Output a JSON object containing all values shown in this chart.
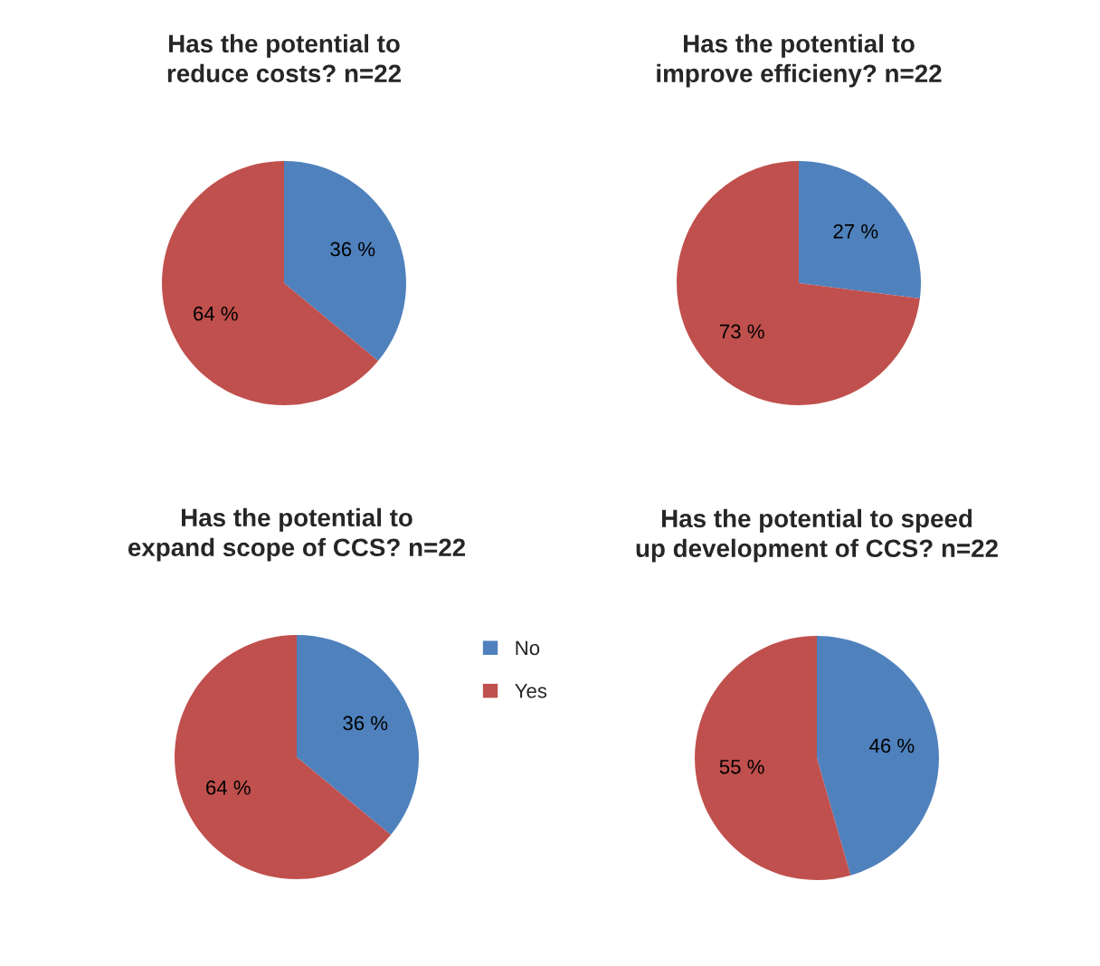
{
  "chart_data": [
    {
      "type": "pie",
      "title": "Has the potential to reduce costs? n=22",
      "categories": [
        "No",
        "Yes"
      ],
      "values": [
        36,
        64
      ],
      "colors": [
        "#4f81bd",
        "#c0504d"
      ],
      "value_labels": [
        "36 %",
        "64 %"
      ],
      "legend": "bottom right"
    },
    {
      "type": "pie",
      "title": "Has the potential to improve efficieny? n=22",
      "values": [
        27,
        73
      ],
      "colors": [
        "#4f81bd",
        "#c0504d"
      ],
      "value_labels": [
        "27 %",
        "73 %"
      ]
    },
    {
      "type": "pie",
      "title": "Has the potential to expand scope of CCS? n=22",
      "values": [
        36,
        64
      ],
      "colors": [
        "#4f81bd",
        "#c0504d"
      ],
      "value_labels": [
        "36 %",
        "64 %"
      ]
    },
    {
      "type": "pie",
      "title": "Has the potential to speed up development of CCS? n=22",
      "values": [
        46,
        55
      ],
      "colors": [
        "#4f81bd",
        "#c0504d"
      ],
      "value_labels": [
        "46 %",
        "55 %"
      ]
    }
  ]
}
